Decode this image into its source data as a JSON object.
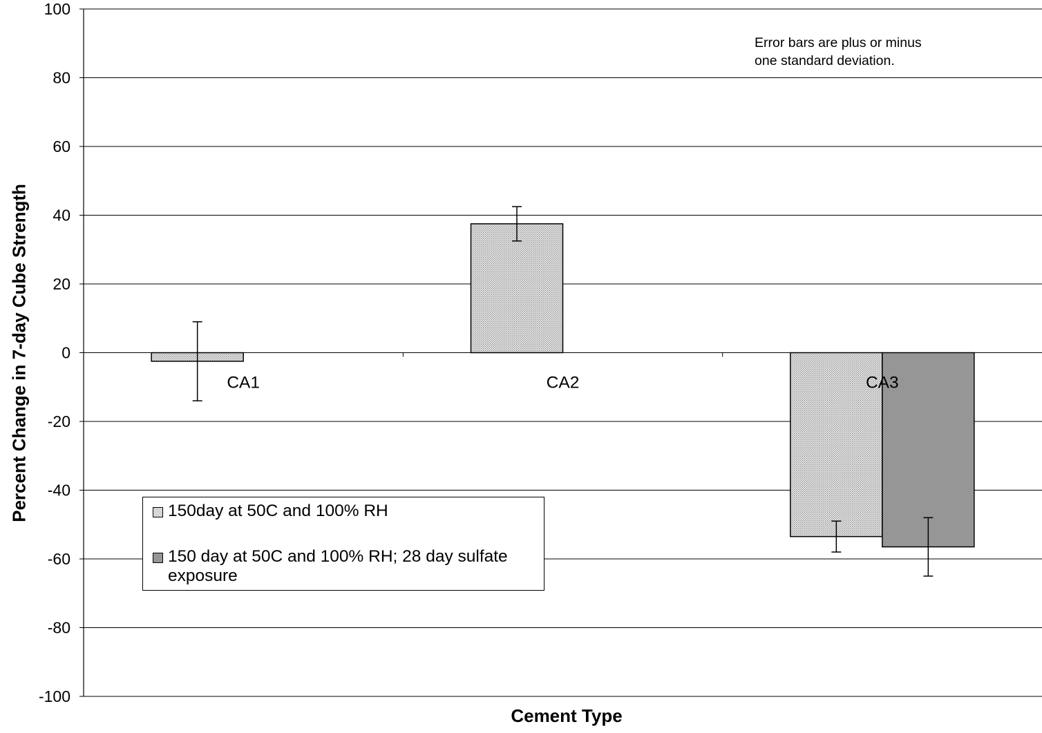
{
  "chart_data": {
    "type": "bar",
    "title": "",
    "xlabel": "Cement Type",
    "ylabel": "Percent Change in 7-day Cube Strength",
    "ylim": [
      -100,
      100
    ],
    "yticks": [
      -100,
      -80,
      -60,
      -40,
      -20,
      0,
      20,
      40,
      60,
      80,
      100
    ],
    "grid": true,
    "legend_position": "lower-left",
    "categories": [
      "CA1",
      "CA2",
      "CA3"
    ],
    "series": [
      {
        "name": "150day at 50C and 100% RH",
        "color": "#c8c8c8",
        "pattern": "fine-dotted",
        "values": [
          -2.5,
          37.5,
          -53.5
        ],
        "error": [
          11.5,
          5,
          4.5
        ]
      },
      {
        "name": "150 day at 50C and 100% RH; 28 day sulfate exposure",
        "color": "#969696",
        "pattern": "solid",
        "values": [
          null,
          null,
          -56.5
        ],
        "error": [
          null,
          null,
          8.5
        ]
      }
    ],
    "annotation": "Error bars are plus or minus one standard deviation."
  }
}
